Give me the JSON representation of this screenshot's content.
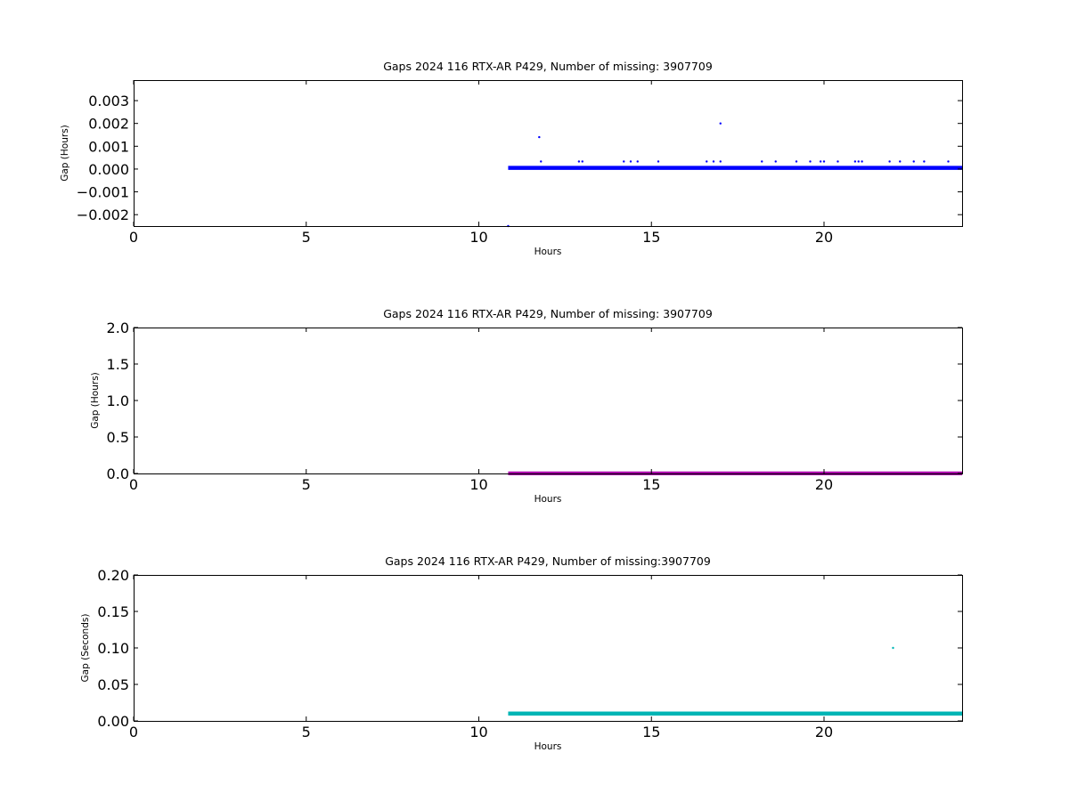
{
  "chart_data": [
    {
      "type": "scatter",
      "title": "Gaps 2024 116 RTX-AR  P429, Number of missing: 3907709",
      "xlabel": "Hours",
      "ylabel": "Gap (Hours)",
      "xlim": [
        0,
        24
      ],
      "ylim": [
        -0.0025,
        0.0039
      ],
      "xticks": [
        0,
        5,
        10,
        15,
        20
      ],
      "xtick_labels": [
        "0",
        "5",
        "10",
        "15",
        "20"
      ],
      "yticks": [
        -0.002,
        -0.001,
        0.0,
        0.001,
        0.002,
        0.003
      ],
      "ytick_labels": [
        "−0.002",
        "−0.001",
        "0.000",
        "0.001",
        "0.002",
        "0.003"
      ],
      "grid": false,
      "series": [
        {
          "color": "#0000ff",
          "baseline": {
            "x_start": 10.85,
            "x_end": 24.0,
            "y": 5e-05
          },
          "points": [
            {
              "x": 10.85,
              "y": -0.0025
            },
            {
              "x": 11.75,
              "y": 0.0014
            },
            {
              "x": 11.8,
              "y": 0.00033
            },
            {
              "x": 12.9,
              "y": 0.00033
            },
            {
              "x": 13.0,
              "y": 0.00033
            },
            {
              "x": 14.2,
              "y": 0.00033
            },
            {
              "x": 14.4,
              "y": 0.00033
            },
            {
              "x": 14.6,
              "y": 0.00033
            },
            {
              "x": 15.2,
              "y": 0.00033
            },
            {
              "x": 16.6,
              "y": 0.00033
            },
            {
              "x": 16.8,
              "y": 0.00033
            },
            {
              "x": 17.0,
              "y": 0.002
            },
            {
              "x": 17.0,
              "y": 0.00033
            },
            {
              "x": 18.2,
              "y": 0.00033
            },
            {
              "x": 18.6,
              "y": 0.00033
            },
            {
              "x": 19.2,
              "y": 0.00033
            },
            {
              "x": 19.6,
              "y": 0.00033
            },
            {
              "x": 19.9,
              "y": 0.00033
            },
            {
              "x": 20.0,
              "y": 0.00033
            },
            {
              "x": 20.4,
              "y": 0.00033
            },
            {
              "x": 20.9,
              "y": 0.00033
            },
            {
              "x": 21.0,
              "y": 0.00033
            },
            {
              "x": 21.1,
              "y": 0.00033
            },
            {
              "x": 21.9,
              "y": 0.00033
            },
            {
              "x": 22.2,
              "y": 0.00033
            },
            {
              "x": 22.6,
              "y": 0.00033
            },
            {
              "x": 22.9,
              "y": 0.00033
            },
            {
              "x": 23.6,
              "y": 0.00033
            }
          ]
        }
      ]
    },
    {
      "type": "scatter",
      "title": "Gaps 2024 116 RTX-AR  P429, Number of missing: 3907709",
      "xlabel": "Hours",
      "ylabel": "Gap (Hours)",
      "xlim": [
        0,
        24
      ],
      "ylim": [
        0,
        2.0
      ],
      "xticks": [
        0,
        5,
        10,
        15,
        20
      ],
      "xtick_labels": [
        "0",
        "5",
        "10",
        "15",
        "20"
      ],
      "yticks": [
        0.0,
        0.5,
        1.0,
        1.5,
        2.0
      ],
      "ytick_labels": [
        "0.0",
        "0.5",
        "1.0",
        "1.5",
        "2.0"
      ],
      "grid": false,
      "series": [
        {
          "color": "#aa00aa",
          "baseline": {
            "x_start": 10.85,
            "x_end": 24.0,
            "y": 0.0
          },
          "points": []
        }
      ]
    },
    {
      "type": "scatter",
      "title": "Gaps 2024 116 RTX-AR  P429, Number of missing:3907709",
      "xlabel": "Hours",
      "ylabel": "Gap (Seconds)",
      "xlim": [
        0,
        24
      ],
      "ylim": [
        0,
        0.2
      ],
      "xticks": [
        0,
        5,
        10,
        15,
        20
      ],
      "xtick_labels": [
        "0",
        "5",
        "10",
        "15",
        "20"
      ],
      "yticks": [
        0.0,
        0.05,
        0.1,
        0.15,
        0.2
      ],
      "ytick_labels": [
        "0.00",
        "0.05",
        "0.10",
        "0.15",
        "0.20"
      ],
      "grid": false,
      "series": [
        {
          "color": "#00b5b5",
          "baseline": {
            "x_start": 10.85,
            "x_end": 24.0,
            "y": 0.01
          },
          "points": [
            {
              "x": 22.0,
              "y": 0.1
            }
          ]
        }
      ]
    }
  ]
}
